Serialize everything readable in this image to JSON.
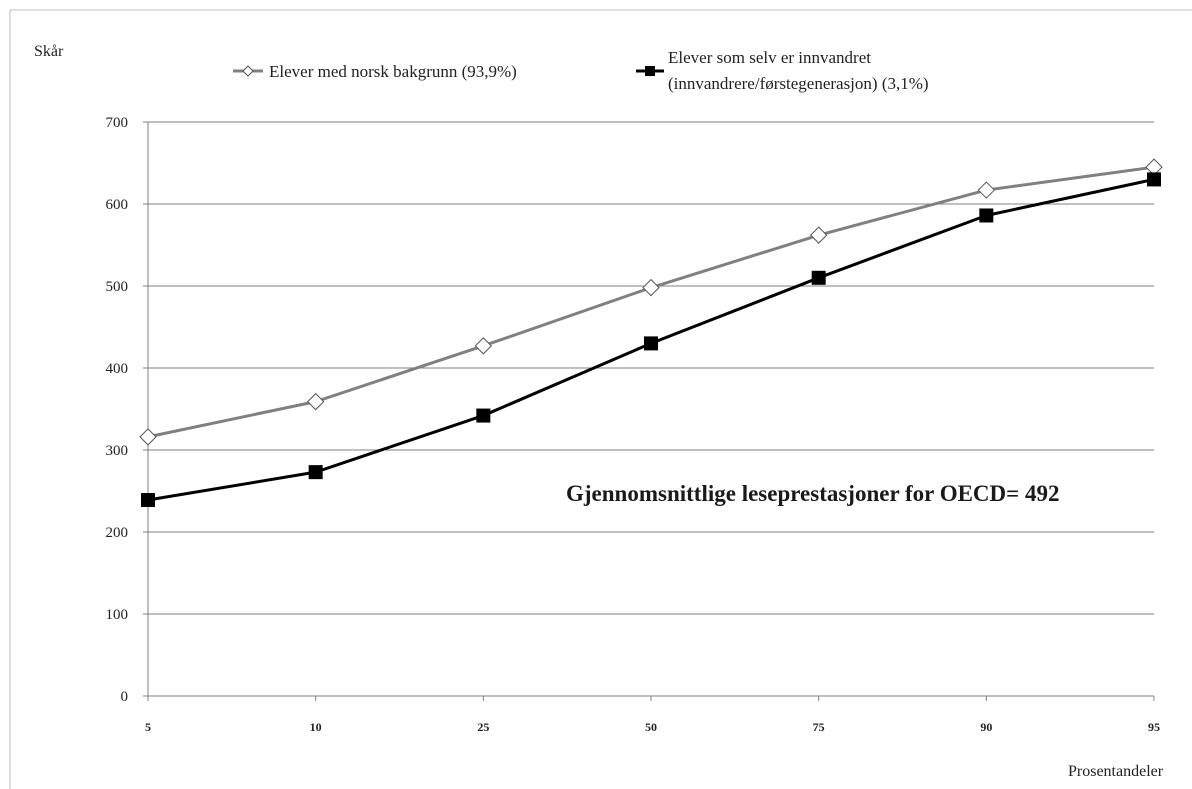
{
  "chart_data": {
    "type": "line",
    "ylabel": "Skår",
    "xlabel": "Prosentandeler",
    "ylim": [
      0,
      700
    ],
    "yticks": [
      "0",
      "100",
      "200",
      "300",
      "400",
      "500",
      "600",
      "700"
    ],
    "categories": [
      "5",
      "10",
      "25",
      "50",
      "75",
      "90",
      "95"
    ],
    "grid": "horizontal",
    "legend_position": "top",
    "series": [
      {
        "name": "Elever med norsk bakgrunn (93,9%)",
        "values": [
          316,
          359,
          427,
          498,
          562,
          617,
          645
        ],
        "color": "#808080",
        "marker": "open-diamond"
      },
      {
        "name_lines": [
          "Elever som selv er innvandret",
          "(innvandrere/førstegenerasjon) (3,1%)"
        ],
        "values": [
          239,
          273,
          342,
          430,
          510,
          586,
          630
        ],
        "color": "#000000",
        "marker": "filled-square"
      }
    ],
    "annotation": "Gjennomsnittlige leseprestasjoner for OECD= 492"
  }
}
